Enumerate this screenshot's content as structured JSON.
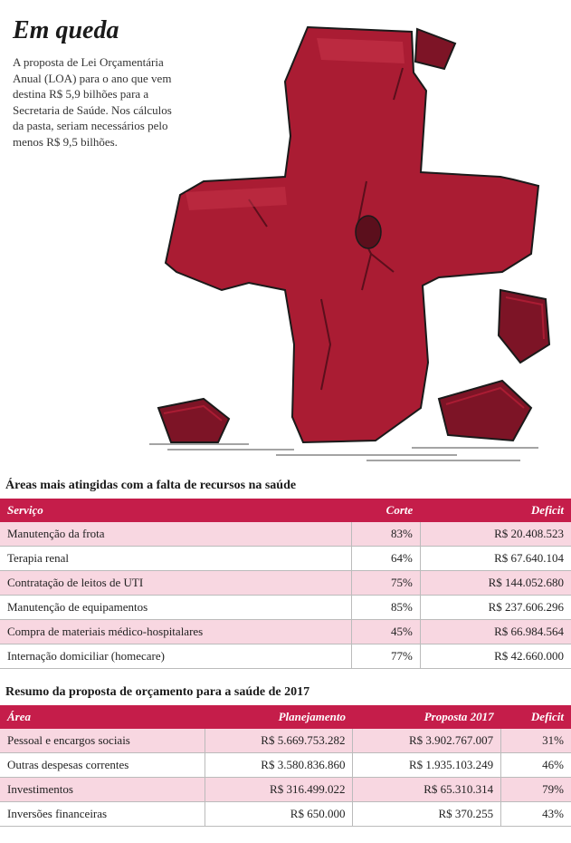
{
  "title": "Em queda",
  "intro": "A proposta de Lei Orçamentária Anual (LOA) para o ano que vem destina R$ 5,9 bilhões para a Secretaria de Saúde. Nos cálculos da pasta, seriam necessários pelo menos R$ 9,5 bilhões.",
  "illustration": {
    "fill": "#aa1c33",
    "fill_dark": "#7d1426",
    "stroke": "#1a1a1a",
    "shadow": "#4a4a4a"
  },
  "table1": {
    "caption": "Áreas mais atingidas com a falta de recursos na saúde",
    "header_bg": "#c51d4a",
    "header_fg": "#ffffff",
    "row_shade": "#f8d7e1",
    "columns": [
      "Serviço",
      "Corte",
      "Deficit"
    ],
    "rows": [
      [
        "Manutenção da frota",
        "83%",
        "R$ 20.408.523"
      ],
      [
        "Terapia renal",
        "64%",
        "R$ 67.640.104"
      ],
      [
        "Contratação de leitos de UTI",
        "75%",
        "R$ 144.052.680"
      ],
      [
        "Manutenção de equipamentos",
        "85%",
        "R$ 237.606.296"
      ],
      [
        "Compra de materiais médico-hospitalares",
        "45%",
        "R$ 66.984.564"
      ],
      [
        "Internação domiciliar (homecare)",
        "77%",
        "R$ 42.660.000"
      ]
    ]
  },
  "table2": {
    "caption": "Resumo da proposta de orçamento para a saúde de 2017",
    "header_bg": "#c51d4a",
    "header_fg": "#ffffff",
    "row_shade": "#f8d7e1",
    "columns": [
      "Área",
      "Planejamento",
      "Proposta 2017",
      "Deficit"
    ],
    "rows": [
      [
        "Pessoal e encargos sociais",
        "R$ 5.669.753.282",
        "R$ 3.902.767.007",
        "31%"
      ],
      [
        "Outras despesas correntes",
        "R$ 3.580.836.860",
        "R$ 1.935.103.249",
        "46%"
      ],
      [
        "Investimentos",
        "R$ 316.499.022",
        "R$ 65.310.314",
        "79%"
      ],
      [
        "Inversões financeiras",
        "R$ 650.000",
        "R$ 370.255",
        "43%"
      ]
    ]
  }
}
